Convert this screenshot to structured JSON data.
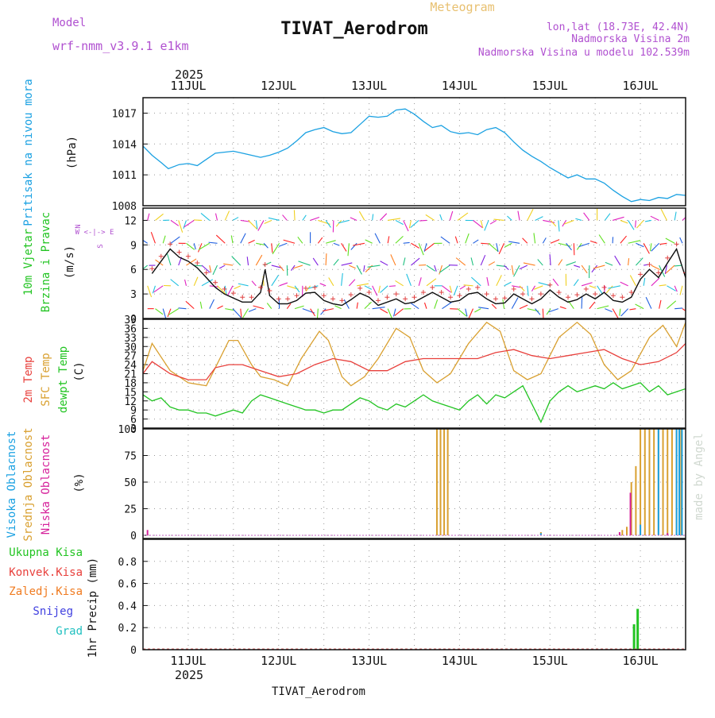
{
  "header": {
    "model_label": "Model",
    "model_name": "wrf-nmm_v3.9.1 e1km",
    "meteogram": "Meteogram",
    "title": "TIVAT_Aerodrom",
    "lonlat": "lon,lat (18.73E, 42.4N)",
    "altitude": "Nadmorska Visina 2m",
    "model_altitude": "Nadmorska Visina u modelu 102.539m",
    "footer_title": "TIVAT_Aerodrom",
    "watermark": "made by Angel"
  },
  "colors": {
    "pressure": "#1ba1e2",
    "wind_label": "#22c422",
    "temp2m": "#e8403c",
    "sfc": "#d9a030",
    "dew": "#22c422",
    "high_cloud": "#1ba1e2",
    "mid_cloud": "#d9a030",
    "low_cloud": "#d6219b",
    "total_precip": "#22c422",
    "conv_precip": "#e8403c",
    "frz_precip": "#f07b20",
    "snow": "#4040e0",
    "hail": "#20c0c0"
  },
  "chart_data": [
    {
      "type": "line",
      "panel": "pressure",
      "ylabel_lines": [
        "Pritisak na nivou mora",
        "(hPa)"
      ],
      "year_top": "2025",
      "year_bottom": "2025",
      "date_ticks": [
        "11JUL",
        "12JUL",
        "13JUL",
        "14JUL",
        "15JUL",
        "16JUL"
      ],
      "x_range": [
        -0.5,
        5.5
      ],
      "ylim": [
        1008,
        1018.5
      ],
      "y_ticks": [
        "1008",
        "1011",
        "1014",
        "1017"
      ],
      "series": [
        {
          "name": "",
          "x": [
            -0.5,
            -0.4,
            -0.3,
            -0.22,
            -0.1,
            0.0,
            0.1,
            0.2,
            0.3,
            0.4,
            0.5,
            0.6,
            0.7,
            0.8,
            0.9,
            1.0,
            1.1,
            1.2,
            1.3,
            1.4,
            1.5,
            1.6,
            1.7,
            1.8,
            1.9,
            2.0,
            2.1,
            2.2,
            2.3,
            2.4,
            2.5,
            2.6,
            2.7,
            2.8,
            2.9,
            3.0,
            3.1,
            3.2,
            3.3,
            3.4,
            3.5,
            3.6,
            3.7,
            3.8,
            3.9,
            4.0,
            4.1,
            4.2,
            4.3,
            4.4,
            4.5,
            4.6,
            4.7,
            4.8,
            4.9,
            5.0,
            5.1,
            5.2,
            5.3,
            5.4,
            5.5
          ],
          "values": [
            1013.8,
            1012.9,
            1012.2,
            1011.6,
            1012.0,
            1012.1,
            1011.9,
            1012.5,
            1013.1,
            1013.2,
            1013.3,
            1013.1,
            1012.9,
            1012.7,
            1012.9,
            1013.2,
            1013.6,
            1014.3,
            1015.1,
            1015.4,
            1015.6,
            1015.2,
            1015.0,
            1015.1,
            1015.9,
            1016.7,
            1016.6,
            1016.7,
            1017.3,
            1017.4,
            1016.9,
            1016.2,
            1015.6,
            1015.8,
            1015.2,
            1015.0,
            1015.1,
            1014.9,
            1015.4,
            1015.6,
            1015.1,
            1014.2,
            1013.4,
            1012.8,
            1012.3,
            1011.7,
            1011.2,
            1010.7,
            1011.0,
            1010.6,
            1010.6,
            1010.2,
            1009.5,
            1008.9,
            1008.4,
            1008.6,
            1008.5,
            1008.8,
            1008.7,
            1009.1,
            1009.0
          ]
        }
      ]
    },
    {
      "type": "line",
      "panel": "wind",
      "ylabel_lines": [
        "10m Vjetar",
        "Brzina i Pravac",
        "(m/s)"
      ],
      "compass": [
        "N",
        "^",
        "W <-|-> E",
        "v",
        "S"
      ],
      "x_range": [
        -0.5,
        5.5
      ],
      "ylim": [
        0,
        13.5
      ],
      "y_ticks": [
        "0",
        "3",
        "6",
        "9",
        "12"
      ],
      "series": [
        {
          "name": "",
          "x": [
            -0.4,
            -0.3,
            -0.2,
            -0.1,
            0.0,
            0.1,
            0.2,
            0.3,
            0.4,
            0.5,
            0.6,
            0.7,
            0.8,
            0.85,
            0.9,
            1.0,
            1.1,
            1.2,
            1.3,
            1.4,
            1.5,
            1.6,
            1.7,
            1.8,
            1.9,
            2.0,
            2.1,
            2.2,
            2.3,
            2.4,
            2.5,
            2.6,
            2.7,
            2.8,
            2.9,
            3.0,
            3.1,
            3.2,
            3.3,
            3.4,
            3.5,
            3.6,
            3.7,
            3.8,
            3.9,
            4.0,
            4.1,
            4.2,
            4.3,
            4.4,
            4.5,
            4.6,
            4.7,
            4.8,
            4.9,
            5.0,
            5.1,
            5.2,
            5.3,
            5.4,
            5.5
          ],
          "values": [
            5.5,
            7.0,
            8.5,
            7.5,
            7.0,
            6.2,
            5.0,
            3.8,
            3.0,
            2.5,
            2.0,
            2.0,
            3.2,
            6.0,
            2.8,
            1.8,
            1.8,
            2.2,
            3.1,
            3.2,
            2.2,
            1.8,
            1.6,
            2.3,
            3.1,
            2.6,
            1.6,
            2.0,
            2.4,
            1.8,
            2.0,
            2.6,
            3.2,
            2.6,
            2.0,
            2.2,
            3.0,
            3.2,
            2.4,
            1.8,
            1.9,
            3.0,
            2.4,
            1.8,
            2.4,
            3.5,
            2.6,
            2.0,
            2.3,
            3.0,
            2.4,
            3.2,
            2.2,
            2.0,
            2.6,
            4.8,
            6.0,
            5.0,
            6.8,
            8.5,
            5.0
          ]
        }
      ]
    },
    {
      "type": "line",
      "panel": "temperature",
      "ylabel_lines": [
        "2m Temp",
        "SFC Temp",
        "dewpt Temp",
        "(C)"
      ],
      "x_range": [
        -0.5,
        5.5
      ],
      "ylim": [
        3,
        39
      ],
      "y_ticks": [
        "3",
        "6",
        "9",
        "12",
        "15",
        "18",
        "21",
        "24",
        "27",
        "30",
        "33",
        "36",
        "39"
      ],
      "series": [
        {
          "name": "SFC Temp",
          "x": [
            -0.5,
            -0.4,
            -0.2,
            0.0,
            0.2,
            0.3,
            0.45,
            0.55,
            0.7,
            0.8,
            0.95,
            1.1,
            1.25,
            1.45,
            1.55,
            1.7,
            1.8,
            1.95,
            2.1,
            2.3,
            2.45,
            2.6,
            2.75,
            2.9,
            3.1,
            3.3,
            3.45,
            3.6,
            3.75,
            3.9,
            4.1,
            4.3,
            4.45,
            4.6,
            4.75,
            4.9,
            5.1,
            5.25,
            5.4,
            5.5
          ],
          "values": [
            22,
            31,
            22,
            18,
            17,
            23,
            32,
            32,
            24,
            20,
            19,
            17,
            26,
            35,
            32,
            20,
            17,
            20,
            26,
            36,
            33,
            22,
            18,
            21,
            31,
            38,
            35,
            22,
            19,
            21,
            33,
            38,
            34,
            24,
            19,
            22,
            33,
            37,
            30,
            38
          ]
        },
        {
          "name": "2m Temp",
          "x": [
            -0.5,
            -0.4,
            -0.2,
            0.0,
            0.2,
            0.3,
            0.45,
            0.6,
            0.8,
            1.0,
            1.2,
            1.4,
            1.6,
            1.8,
            2.0,
            2.2,
            2.4,
            2.6,
            2.8,
            3.0,
            3.2,
            3.4,
            3.6,
            3.8,
            4.0,
            4.2,
            4.4,
            4.6,
            4.8,
            5.0,
            5.2,
            5.4,
            5.5
          ],
          "values": [
            21,
            25,
            21,
            19,
            19,
            23,
            24,
            24,
            22,
            20,
            21,
            24,
            26,
            25,
            22,
            22,
            25,
            26,
            26,
            26,
            26,
            28,
            29,
            27,
            26,
            27,
            28,
            29,
            26,
            24,
            25,
            28,
            31
          ]
        },
        {
          "name": "dewpt Temp",
          "x": [
            -0.5,
            -0.4,
            -0.3,
            -0.2,
            -0.1,
            0.0,
            0.1,
            0.2,
            0.3,
            0.4,
            0.5,
            0.6,
            0.7,
            0.8,
            0.9,
            1.0,
            1.1,
            1.2,
            1.3,
            1.4,
            1.5,
            1.6,
            1.7,
            1.8,
            1.9,
            2.0,
            2.1,
            2.2,
            2.3,
            2.4,
            2.5,
            2.6,
            2.7,
            2.8,
            2.9,
            3.0,
            3.1,
            3.2,
            3.3,
            3.4,
            3.5,
            3.6,
            3.7,
            3.8,
            3.9,
            4.0,
            4.1,
            4.2,
            4.3,
            4.4,
            4.5,
            4.6,
            4.7,
            4.8,
            4.9,
            5.0,
            5.1,
            5.2,
            5.3,
            5.4,
            5.5
          ],
          "values": [
            14,
            12,
            13,
            10,
            9,
            9,
            8,
            8,
            7,
            8,
            9,
            8,
            12,
            14,
            13,
            12,
            11,
            10,
            9,
            9,
            8,
            9,
            9,
            11,
            13,
            12,
            10,
            9,
            11,
            10,
            12,
            14,
            12,
            11,
            10,
            9,
            12,
            14,
            11,
            14,
            13,
            15,
            17,
            11,
            5,
            12,
            15,
            17,
            15,
            16,
            17,
            16,
            18,
            16,
            17,
            18,
            15,
            17,
            14,
            15,
            16
          ]
        }
      ]
    },
    {
      "type": "bar",
      "panel": "cloud",
      "ylabel_lines": [
        "Visoka Oblacnost",
        "Srednja Oblacnost",
        "Niska Oblacnost",
        "(%)"
      ],
      "x_range": [
        -0.5,
        5.5
      ],
      "ylim": [
        -3,
        100
      ],
      "y_ticks": [
        "0",
        "25",
        "50",
        "75",
        "100"
      ],
      "series": [
        {
          "name": "Srednja Oblacnost",
          "x": [
            2.75,
            2.79,
            2.83,
            2.87,
            3.9,
            4.8,
            4.85,
            4.9,
            4.95,
            5.0,
            5.05,
            5.1,
            5.15,
            5.2,
            5.25,
            5.3,
            5.35,
            5.4,
            5.45
          ],
          "values": [
            100,
            100,
            100,
            100,
            3,
            5,
            8,
            50,
            65,
            100,
            100,
            100,
            100,
            100,
            100,
            100,
            100,
            100,
            100
          ]
        },
        {
          "name": "Niska Oblacnost",
          "x": [
            -0.45,
            4.77,
            4.89,
            5.3
          ],
          "values": [
            5,
            3,
            40,
            2
          ]
        },
        {
          "name": "Visoka Oblacnost",
          "x": [
            3.9,
            5.0,
            5.2,
            5.4,
            5.43,
            5.46
          ],
          "values": [
            2,
            10,
            100,
            100,
            100,
            100
          ]
        }
      ]
    },
    {
      "type": "bar",
      "panel": "precip",
      "ylabel_lines": [
        "1hr Precip (mm)"
      ],
      "legend": [
        "Ukupna Kisa",
        "Konvek.Kisa",
        "Zaledj.Kisa",
        "Snijeg",
        "Grad"
      ],
      "x_range": [
        -0.5,
        5.5
      ],
      "ylim": [
        0,
        1.0
      ],
      "y_ticks": [
        "0",
        "0.2",
        "0.4",
        "0.6",
        "0.8"
      ],
      "series": [
        {
          "name": "Ukupna Kisa",
          "x": [
            4.93,
            4.97
          ],
          "values": [
            0.23,
            0.37
          ]
        }
      ]
    }
  ]
}
